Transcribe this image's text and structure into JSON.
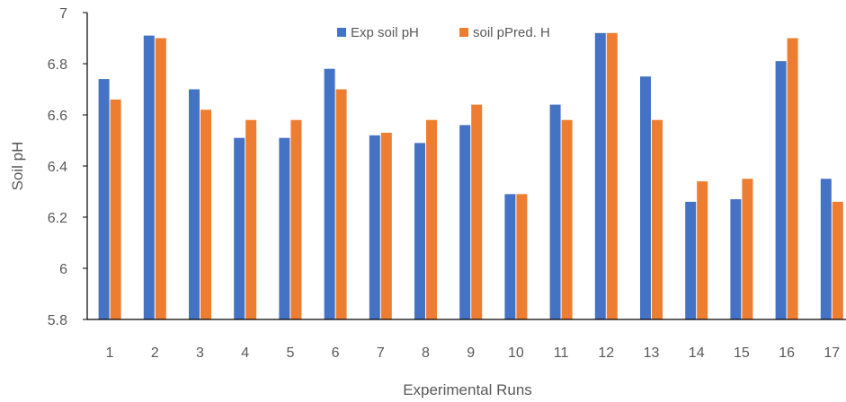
{
  "chart_data": {
    "type": "bar",
    "title": "",
    "xlabel": "Experimental Runs",
    "ylabel": "Soil pH",
    "categories": [
      "1",
      "2",
      "3",
      "4",
      "5",
      "6",
      "7",
      "8",
      "9",
      "10",
      "11",
      "12",
      "13",
      "14",
      "15",
      "16",
      "17"
    ],
    "ylim": [
      5.8,
      7
    ],
    "yticks": [
      "5.8",
      "6",
      "6.2",
      "6.4",
      "6.6",
      "6.8",
      "7"
    ],
    "grid": false,
    "legend_position": "top-center",
    "series": [
      {
        "name": "Exp soil pH",
        "color": "#4472C4",
        "values": [
          6.74,
          6.91,
          6.7,
          6.51,
          6.51,
          6.78,
          6.52,
          6.49,
          6.56,
          6.29,
          6.64,
          6.92,
          6.75,
          6.26,
          6.27,
          6.81,
          6.35
        ]
      },
      {
        "name": "soil pPred. H",
        "color": "#ED7D31",
        "values": [
          6.66,
          6.9,
          6.62,
          6.58,
          6.58,
          6.7,
          6.53,
          6.58,
          6.64,
          6.29,
          6.58,
          6.92,
          6.58,
          6.34,
          6.35,
          6.9,
          6.26
        ]
      }
    ]
  }
}
